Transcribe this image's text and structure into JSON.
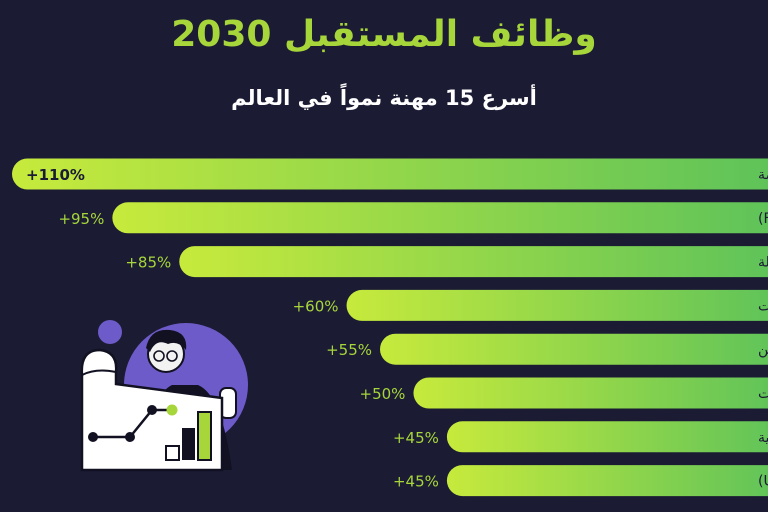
{
  "title": "وظائف المستقبل 2030",
  "subtitle": "أسرع 15 مهنة نمواً في العالم",
  "colors": {
    "background": "#1b1b34",
    "accent": "#a6d63a",
    "bar_start": "#c7ea3c",
    "bar_end": "#5cc25a",
    "label_text": "#1b1b34",
    "value_text_inside": "#1b1b34",
    "value_text_outside": "#a6d63a",
    "illustration_blob": "#6d5bc9"
  },
  "illustration": {
    "icons": [
      "person-icon",
      "chart-board-icon",
      "line-graph-icon",
      "bar-graph-icon"
    ]
  },
  "chart_data": {
    "type": "bar",
    "orientation": "horizontal",
    "categories": [
      "أخصائيو البيانات الضخمة",
      "(FinTech) مهندسو التكنولوجيا المالية",
      "أخصائيو الذكاء الاصطناعي وتعلم الآلة",
      "مطورو البرامج والتطبيقات",
      "أخصائيو إدارة الأمن",
      "أخصائيو تخزين البيانات",
      "أخصائيو المركبات ذاتية القيادة والكهربائية",
      "مصممو واجهة المستخدم  (UI/UX)"
    ],
    "values": [
      110,
      95,
      85,
      60,
      55,
      50,
      45,
      45
    ],
    "value_labels": [
      "+110%",
      "+95%",
      "+85%",
      "+60%",
      "+55%",
      "+50%",
      "+45%",
      "+45%"
    ],
    "xlim": [
      0,
      110
    ],
    "grid": false,
    "legend": "none"
  }
}
